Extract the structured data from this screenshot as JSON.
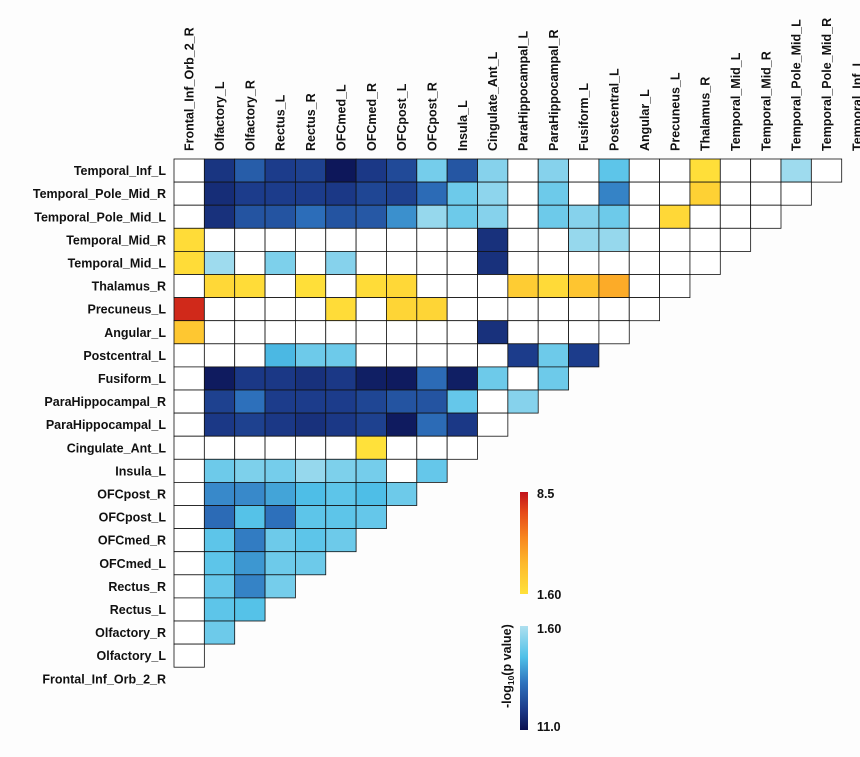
{
  "chart_data": {
    "type": "heatmap",
    "title": "",
    "labels": [
      "Temporal_Inf_L",
      "Temporal_Pole_Mid_R",
      "Temporal_Pole_Mid_L",
      "Temporal_Mid_R",
      "Temporal_Mid_L",
      "Thalamus_R",
      "Precuneus_L",
      "Angular_L",
      "Postcentral_L",
      "Fusiform_L",
      "ParaHippocampal_R",
      "ParaHippocampal_L",
      "Cingulate_Ant_L",
      "Insula_L",
      "OFCpost_R",
      "OFCpost_L",
      "OFCmed_R",
      "OFCmed_L",
      "Rectus_R",
      "Rectus_L",
      "Olfactory_R",
      "Olfactory_L",
      "Frontal_Inf_Orb_2_R"
    ],
    "colorbar_title": "-log",
    "colorbar_subscript": "10",
    "colorbar_title_tail": "(p value)",
    "positive_scale": {
      "min_label": "1.60",
      "max_label": "8.5",
      "min": 1.6,
      "max": 8.5,
      "colors": [
        "#ffe13a",
        "#fdb92c",
        "#f8871f",
        "#e64a19",
        "#c1121b"
      ]
    },
    "negative_scale": {
      "min_label": "1.60",
      "max_label": "11.0",
      "min": 1.6,
      "max": 11.0,
      "colors": [
        "#aee0ef",
        "#4fc0e8",
        "#2e72bd",
        "#1c3b8a",
        "#0a1050"
      ]
    },
    "cells": [
      {
        "r": 0,
        "c": 1,
        "v": -9.0
      },
      {
        "r": 0,
        "c": 2,
        "v": -7.2
      },
      {
        "r": 0,
        "c": 3,
        "v": -8.6
      },
      {
        "r": 0,
        "c": 4,
        "v": -8.4
      },
      {
        "r": 0,
        "c": 5,
        "v": -10.6
      },
      {
        "r": 0,
        "c": 6,
        "v": -8.8
      },
      {
        "r": 0,
        "c": 7,
        "v": -8.0
      },
      {
        "r": 0,
        "c": 8,
        "v": -3.0
      },
      {
        "r": 0,
        "c": 9,
        "v": -7.5
      },
      {
        "r": 0,
        "c": 10,
        "v": -2.6
      },
      {
        "r": 0,
        "c": 12,
        "v": -2.6
      },
      {
        "r": 0,
        "c": 14,
        "v": -3.6
      },
      {
        "r": 0,
        "c": 17,
        "v": 1.7
      },
      {
        "r": 0,
        "c": 20,
        "v": -2.0
      },
      {
        "r": 1,
        "c": 1,
        "v": -9.4
      },
      {
        "r": 1,
        "c": 2,
        "v": -8.6
      },
      {
        "r": 1,
        "c": 3,
        "v": -8.6
      },
      {
        "r": 1,
        "c": 4,
        "v": -8.6
      },
      {
        "r": 1,
        "c": 5,
        "v": -8.8
      },
      {
        "r": 1,
        "c": 6,
        "v": -8.2
      },
      {
        "r": 1,
        "c": 7,
        "v": -8.4
      },
      {
        "r": 1,
        "c": 8,
        "v": -6.6
      },
      {
        "r": 1,
        "c": 9,
        "v": -3.2
      },
      {
        "r": 1,
        "c": 10,
        "v": -2.4
      },
      {
        "r": 1,
        "c": 12,
        "v": -3.2
      },
      {
        "r": 1,
        "c": 14,
        "v": -5.8
      },
      {
        "r": 1,
        "c": 17,
        "v": 2.3
      },
      {
        "r": 2,
        "c": 1,
        "v": -9.2
      },
      {
        "r": 2,
        "c": 2,
        "v": -7.6
      },
      {
        "r": 2,
        "c": 3,
        "v": -7.6
      },
      {
        "r": 2,
        "c": 4,
        "v": -6.5
      },
      {
        "r": 2,
        "c": 5,
        "v": -7.6
      },
      {
        "r": 2,
        "c": 6,
        "v": -7.4
      },
      {
        "r": 2,
        "c": 7,
        "v": -5.4
      },
      {
        "r": 2,
        "c": 8,
        "v": -2.2
      },
      {
        "r": 2,
        "c": 9,
        "v": -3.2
      },
      {
        "r": 2,
        "c": 10,
        "v": -2.6
      },
      {
        "r": 2,
        "c": 12,
        "v": -3.2
      },
      {
        "r": 2,
        "c": 13,
        "v": -2.6
      },
      {
        "r": 2,
        "c": 14,
        "v": -3.2
      },
      {
        "r": 2,
        "c": 16,
        "v": 2.0
      },
      {
        "r": 3,
        "c": 0,
        "v": 1.8
      },
      {
        "r": 3,
        "c": 10,
        "v": -9.2
      },
      {
        "r": 3,
        "c": 13,
        "v": -2.2
      },
      {
        "r": 3,
        "c": 14,
        "v": -2.2
      },
      {
        "r": 4,
        "c": 0,
        "v": 1.8
      },
      {
        "r": 4,
        "c": 1,
        "v": -2.0
      },
      {
        "r": 4,
        "c": 3,
        "v": -2.8
      },
      {
        "r": 4,
        "c": 5,
        "v": -2.6
      },
      {
        "r": 4,
        "c": 10,
        "v": -9.2
      },
      {
        "r": 5,
        "c": 1,
        "v": 2.0
      },
      {
        "r": 5,
        "c": 2,
        "v": 1.8
      },
      {
        "r": 5,
        "c": 4,
        "v": 1.7
      },
      {
        "r": 5,
        "c": 6,
        "v": 1.8
      },
      {
        "r": 5,
        "c": 7,
        "v": 2.0
      },
      {
        "r": 5,
        "c": 11,
        "v": 2.5
      },
      {
        "r": 5,
        "c": 12,
        "v": 1.9
      },
      {
        "r": 5,
        "c": 13,
        "v": 2.8
      },
      {
        "r": 5,
        "c": 14,
        "v": 3.8
      },
      {
        "r": 6,
        "c": 0,
        "v": 7.8
      },
      {
        "r": 6,
        "c": 5,
        "v": 1.8
      },
      {
        "r": 6,
        "c": 7,
        "v": 2.1
      },
      {
        "r": 6,
        "c": 8,
        "v": 2.1
      },
      {
        "r": 7,
        "c": 0,
        "v": 2.7
      },
      {
        "r": 7,
        "c": 10,
        "v": -9.2
      },
      {
        "r": 8,
        "c": 3,
        "v": -4.2
      },
      {
        "r": 8,
        "c": 4,
        "v": -3.2
      },
      {
        "r": 8,
        "c": 5,
        "v": -3.2
      },
      {
        "r": 8,
        "c": 11,
        "v": -8.6
      },
      {
        "r": 8,
        "c": 12,
        "v": -3.2
      },
      {
        "r": 8,
        "c": 13,
        "v": -8.6
      },
      {
        "r": 9,
        "c": 1,
        "v": -10.4
      },
      {
        "r": 9,
        "c": 2,
        "v": -8.8
      },
      {
        "r": 9,
        "c": 3,
        "v": -8.8
      },
      {
        "r": 9,
        "c": 4,
        "v": -9.2
      },
      {
        "r": 9,
        "c": 5,
        "v": -8.8
      },
      {
        "r": 9,
        "c": 6,
        "v": -10.2
      },
      {
        "r": 9,
        "c": 7,
        "v": -10.4
      },
      {
        "r": 9,
        "c": 8,
        "v": -6.6
      },
      {
        "r": 9,
        "c": 9,
        "v": -10.2
      },
      {
        "r": 9,
        "c": 10,
        "v": -3.2
      },
      {
        "r": 9,
        "c": 12,
        "v": -3.2
      },
      {
        "r": 10,
        "c": 1,
        "v": -8.4
      },
      {
        "r": 10,
        "c": 2,
        "v": -6.4
      },
      {
        "r": 10,
        "c": 3,
        "v": -8.6
      },
      {
        "r": 10,
        "c": 4,
        "v": -8.6
      },
      {
        "r": 10,
        "c": 5,
        "v": -8.6
      },
      {
        "r": 10,
        "c": 6,
        "v": -8.2
      },
      {
        "r": 10,
        "c": 7,
        "v": -7.6
      },
      {
        "r": 10,
        "c": 8,
        "v": -7.6
      },
      {
        "r": 10,
        "c": 9,
        "v": -3.4
      },
      {
        "r": 10,
        "c": 11,
        "v": -2.6
      },
      {
        "r": 11,
        "c": 1,
        "v": -8.8
      },
      {
        "r": 11,
        "c": 2,
        "v": -8.4
      },
      {
        "r": 11,
        "c": 3,
        "v": -8.8
      },
      {
        "r": 11,
        "c": 4,
        "v": -9.2
      },
      {
        "r": 11,
        "c": 5,
        "v": -8.8
      },
      {
        "r": 11,
        "c": 6,
        "v": -8.4
      },
      {
        "r": 11,
        "c": 7,
        "v": -10.4
      },
      {
        "r": 11,
        "c": 8,
        "v": -6.6
      },
      {
        "r": 11,
        "c": 9,
        "v": -8.8
      },
      {
        "r": 12,
        "c": 6,
        "v": 1.6
      },
      {
        "r": 13,
        "c": 1,
        "v": -3.2
      },
      {
        "r": 13,
        "c": 2,
        "v": -2.8
      },
      {
        "r": 13,
        "c": 3,
        "v": -3.0
      },
      {
        "r": 13,
        "c": 4,
        "v": -2.2
      },
      {
        "r": 13,
        "c": 5,
        "v": -2.8
      },
      {
        "r": 13,
        "c": 6,
        "v": -3.0
      },
      {
        "r": 13,
        "c": 8,
        "v": -3.4
      },
      {
        "r": 14,
        "c": 1,
        "v": -5.6
      },
      {
        "r": 14,
        "c": 2,
        "v": -5.6
      },
      {
        "r": 14,
        "c": 3,
        "v": -4.8
      },
      {
        "r": 14,
        "c": 4,
        "v": -4.0
      },
      {
        "r": 14,
        "c": 5,
        "v": -3.6
      },
      {
        "r": 14,
        "c": 6,
        "v": -4.0
      },
      {
        "r": 14,
        "c": 7,
        "v": -3.2
      },
      {
        "r": 15,
        "c": 1,
        "v": -6.6
      },
      {
        "r": 15,
        "c": 2,
        "v": -3.8
      },
      {
        "r": 15,
        "c": 3,
        "v": -6.4
      },
      {
        "r": 15,
        "c": 4,
        "v": -3.6
      },
      {
        "r": 15,
        "c": 5,
        "v": -3.6
      },
      {
        "r": 15,
        "c": 6,
        "v": -3.4
      },
      {
        "r": 16,
        "c": 1,
        "v": -3.6
      },
      {
        "r": 16,
        "c": 2,
        "v": -6.0
      },
      {
        "r": 16,
        "c": 3,
        "v": -3.2
      },
      {
        "r": 16,
        "c": 4,
        "v": -3.6
      },
      {
        "r": 16,
        "c": 5,
        "v": -3.2
      },
      {
        "r": 17,
        "c": 1,
        "v": -3.6
      },
      {
        "r": 17,
        "c": 2,
        "v": -5.2
      },
      {
        "r": 17,
        "c": 3,
        "v": -3.2
      },
      {
        "r": 17,
        "c": 4,
        "v": -3.2
      },
      {
        "r": 18,
        "c": 1,
        "v": -3.4
      },
      {
        "r": 18,
        "c": 2,
        "v": -5.8
      },
      {
        "r": 18,
        "c": 3,
        "v": -3.0
      },
      {
        "r": 19,
        "c": 1,
        "v": -3.6
      },
      {
        "r": 19,
        "c": 2,
        "v": -3.8
      },
      {
        "r": 20,
        "c": 1,
        "v": -3.2
      }
    ]
  }
}
